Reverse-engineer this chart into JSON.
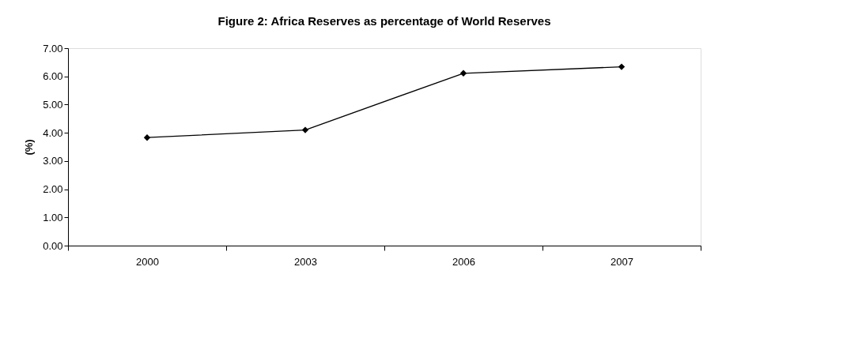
{
  "chart_data": {
    "type": "line",
    "title": "Figure 2: Africa Reserves as percentage of World Reserves",
    "ylabel": "(%)",
    "categories": [
      "2000",
      "2003",
      "2006",
      "2007"
    ],
    "series": [
      {
        "color": "#000000",
        "values": [
          3.83,
          4.1,
          6.11,
          6.34
        ]
      }
    ],
    "ylim": [
      0,
      7
    ],
    "yticks": [
      {
        "value": 0,
        "label": "0.00"
      },
      {
        "value": 1,
        "label": "1.00"
      },
      {
        "value": 2,
        "label": "2.00"
      },
      {
        "value": 3,
        "label": "3.00"
      },
      {
        "value": 4,
        "label": "4.00"
      },
      {
        "value": 5,
        "label": "5.00"
      },
      {
        "value": 6,
        "label": "6.00"
      },
      {
        "value": 7,
        "label": "7.00"
      }
    ],
    "grid": false,
    "marker": "diamond",
    "line_style": "solid"
  }
}
